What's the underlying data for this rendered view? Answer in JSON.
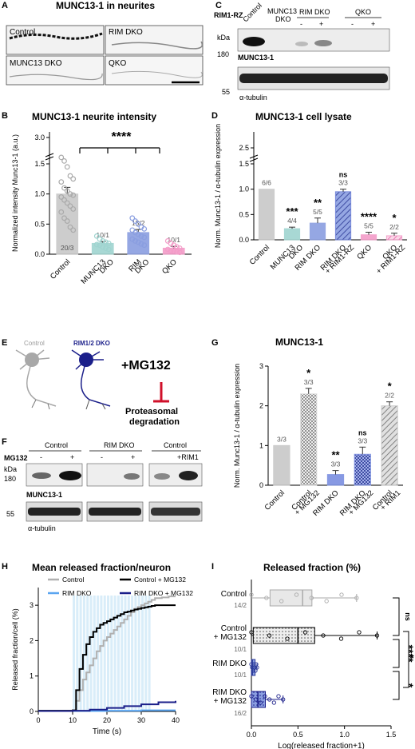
{
  "figure": {
    "panels": {
      "A": {
        "letter": "A",
        "title": "MUNC13-1 in neurites",
        "images": [
          "Control",
          "RIM DKO",
          "MUNC13 DKO",
          "QKO"
        ]
      },
      "B": {
        "letter": "B",
        "title": "MUNC13-1 neurite intensity",
        "ylabel": "Normalized intensity Munc13-1 (a.u.)",
        "sig": "****"
      },
      "C": {
        "letter": "C",
        "rim_label": "RIM1-RZ",
        "kda": "kDa",
        "lanes": [
          "Control",
          "MUNC13 DKO",
          "RIM DKO",
          "QKO"
        ],
        "pm": [
          "-",
          "+",
          "-",
          "+"
        ],
        "m180": "180",
        "m55": "55",
        "blot1": "MUNC13-1",
        "blot2": "α-tubulin"
      },
      "D": {
        "letter": "D",
        "title": "MUNC13-1 cell lysate",
        "ylabel": "Norm. Munc13-1 / α-tubulin expression"
      },
      "E": {
        "letter": "E",
        "control": "Control",
        "dko": "RIM1/2 DKO",
        "drug": "+MG132",
        "effect1": "Proteasomal",
        "effect2": "degradation"
      },
      "F": {
        "letter": "F",
        "groups": [
          "Control",
          "RIM DKO",
          "Control"
        ],
        "mg": "MG132",
        "pm": [
          "-",
          "+",
          "-",
          "+"
        ],
        "rim1": "+RIM1",
        "kda": "kDa",
        "m180": "180",
        "m55": "55",
        "blot1": "MUNC13-1",
        "blot2": "α-tubulin"
      },
      "G": {
        "letter": "G",
        "title": "MUNC13-1",
        "ylabel": "Norm. Munc13-1 / α-tubulin expression"
      },
      "H": {
        "letter": "H",
        "title": "Mean released fraction/neuron",
        "ylabel": "Released fraction/cell (%)",
        "xlabel": "Time (s)"
      },
      "I": {
        "letter": "I",
        "title": "Released fraction (%)",
        "xlabel": "Log(released fraction+1)"
      }
    }
  },
  "chart_data": [
    {
      "panel": "B",
      "type": "bar",
      "categories": [
        "Control",
        "MUNC13 DKO",
        "RIM DKO",
        "QKO"
      ],
      "values": [
        1.0,
        0.18,
        0.36,
        0.1
      ],
      "errors": [
        0.11,
        0.03,
        0.05,
        0.03
      ],
      "n_labels": [
        "20/3",
        "10/1",
        "15/2",
        "10/1"
      ],
      "colors": [
        "#c8c8c8",
        "#9fd4d0",
        "#8a9ee0",
        "#f39cc8"
      ],
      "ylabel": "Normalized intensity Munc13-1 (a.u.)",
      "yticks": [
        "0.0",
        "0.5",
        "1.0",
        "1.5",
        "3.0"
      ],
      "significance": "****",
      "points": [
        [
          1.95,
          1.7,
          1.45,
          1.3,
          1.25,
          1.2,
          1.1,
          1.05,
          1.0,
          0.98,
          0.95,
          0.9,
          0.85,
          0.8,
          0.75,
          0.7,
          0.6,
          0.55,
          0.45,
          0.4
        ],
        [
          0.3,
          0.25,
          0.22,
          0.2,
          0.18,
          0.16,
          0.15,
          0.12,
          0.1,
          0.08
        ],
        [
          0.6,
          0.55,
          0.5,
          0.45,
          0.42,
          0.4,
          0.36,
          0.33,
          0.3,
          0.28,
          0.25,
          0.22,
          0.2,
          0.17,
          0.15
        ],
        [
          0.22,
          0.18,
          0.15,
          0.12,
          0.1,
          0.08,
          0.06,
          0.05,
          0.04,
          0.03
        ]
      ]
    },
    {
      "panel": "D",
      "type": "bar",
      "categories": [
        "Control",
        "MUNC13 DKO",
        "RIM DKO",
        "RIM DKO + RIM1-RZ",
        "QKO",
        "QKO + RIM1-RZ"
      ],
      "values": [
        1.0,
        0.22,
        0.33,
        0.95,
        0.1,
        0.08
      ],
      "errors": [
        0.0,
        0.03,
        0.1,
        0.05,
        0.05,
        0.05
      ],
      "n_labels": [
        "6/6",
        "4/4",
        "5/5",
        "3/3",
        "5/5",
        "2/2"
      ],
      "significance": [
        "",
        "***",
        "**",
        "ns",
        "****",
        "*"
      ],
      "colors": [
        "#c8c8c8",
        "#9fd4d0",
        "#8a9ee0",
        "#6b7fd8",
        "#f39cc8",
        "#f39cc8"
      ],
      "ylabel": "Norm. Munc13-1 / α-tubulin expression",
      "yticks": [
        "0.0",
        "0.5",
        "1.0",
        "1.5",
        "2.5"
      ]
    },
    {
      "panel": "G",
      "type": "bar",
      "categories": [
        "Control",
        "Control + MG132",
        "RIM DKO",
        "RIM DKO + MG132",
        "Control + RIM1"
      ],
      "values": [
        1.0,
        2.3,
        0.27,
        0.78,
        2.0
      ],
      "errors": [
        0.0,
        0.14,
        0.1,
        0.18,
        0.1
      ],
      "n_labels": [
        "3/3",
        "3/3",
        "3/3",
        "3/3",
        "2/2"
      ],
      "significance": [
        "",
        "*",
        "**",
        "ns",
        "*"
      ],
      "colors": [
        "#c8c8c8",
        "#d8d8d8",
        "#7b8fe0",
        "#7b8fe0",
        "#c8c8c8"
      ],
      "ylabel": "Norm. Munc13-1 / α-tubulin expression",
      "ylim": [
        0,
        3
      ],
      "yticks": [
        "0",
        "1",
        "2",
        "3"
      ]
    },
    {
      "panel": "H",
      "type": "line",
      "xlabel": "Time (s)",
      "ylabel": "Released fraction/cell (%)",
      "xlim": [
        0,
        40
      ],
      "ylim": [
        0,
        3.5
      ],
      "xticks": [
        "0",
        "10",
        "20",
        "30",
        "40"
      ],
      "yticks": [
        "0",
        "1",
        "2",
        "3"
      ],
      "series": [
        {
          "name": "Control",
          "color": "#b0b0b0",
          "x": [
            0,
            10,
            11,
            12,
            13,
            14,
            15,
            16,
            17,
            18,
            19,
            20,
            21,
            22,
            23,
            24,
            25,
            26,
            27,
            28,
            29,
            30,
            31,
            32,
            33,
            34,
            36,
            38,
            40
          ],
          "y": [
            0.02,
            0.03,
            0.3,
            0.6,
            0.9,
            1.1,
            1.3,
            1.5,
            1.7,
            1.85,
            2.0,
            2.1,
            2.2,
            2.3,
            2.4,
            2.5,
            2.6,
            2.7,
            2.8,
            2.9,
            2.95,
            3.0,
            3.05,
            3.1,
            3.15,
            3.2,
            3.22,
            3.25,
            3.25
          ]
        },
        {
          "name": "Control + MG132",
          "color": "#000000",
          "x": [
            0,
            10,
            11,
            12,
            13,
            14,
            15,
            16,
            17,
            18,
            19,
            20,
            21,
            22,
            23,
            24,
            25,
            26,
            27,
            28,
            29,
            30,
            31,
            32,
            33,
            34,
            36,
            38,
            40
          ],
          "y": [
            0.02,
            0.03,
            0.6,
            1.2,
            1.6,
            1.9,
            2.1,
            2.25,
            2.35,
            2.45,
            2.5,
            2.55,
            2.6,
            2.65,
            2.7,
            2.75,
            2.8,
            2.82,
            2.85,
            2.88,
            2.9,
            2.92,
            2.94,
            2.96,
            2.98,
            3.0,
            3.0,
            3.0,
            3.0
          ]
        },
        {
          "name": "RIM DKO",
          "color": "#5aa5f0",
          "x": [
            0,
            10,
            20,
            30,
            40
          ],
          "y": [
            0.01,
            0.01,
            0.02,
            0.03,
            0.03
          ]
        },
        {
          "name": "RIM DKO + MG132",
          "color": "#1b1f8a",
          "x": [
            0,
            10,
            15,
            20,
            25,
            30,
            35,
            40
          ],
          "y": [
            0.01,
            0.02,
            0.05,
            0.1,
            0.15,
            0.2,
            0.26,
            0.3
          ]
        }
      ]
    },
    {
      "panel": "I",
      "type": "box",
      "categories": [
        "Control",
        "Control + MG132",
        "RIM DKO",
        "RIM DKO + MG132"
      ],
      "n_labels": [
        "14/2",
        "10/1",
        "10/1",
        "16/2"
      ],
      "box": [
        {
          "min": 0.0,
          "q1": 0.2,
          "median": 0.55,
          "q3": 0.65,
          "max": 1.13
        },
        {
          "min": 0.0,
          "q1": 0.02,
          "median": 0.5,
          "q3": 0.68,
          "max": 1.35
        },
        {
          "min": 0.0,
          "q1": 0.0,
          "median": 0.01,
          "q3": 0.04,
          "max": 0.06
        },
        {
          "min": 0.0,
          "q1": 0.0,
          "median": 0.07,
          "q3": 0.15,
          "max": 0.34
        }
      ],
      "xlabel": "Log(released fraction+1)",
      "xlim": [
        0,
        1.5
      ],
      "xticks": [
        "0.0",
        "0.5",
        "1.0",
        "1.5"
      ],
      "significance": [
        "ns",
        "****",
        "*",
        "*"
      ]
    }
  ]
}
